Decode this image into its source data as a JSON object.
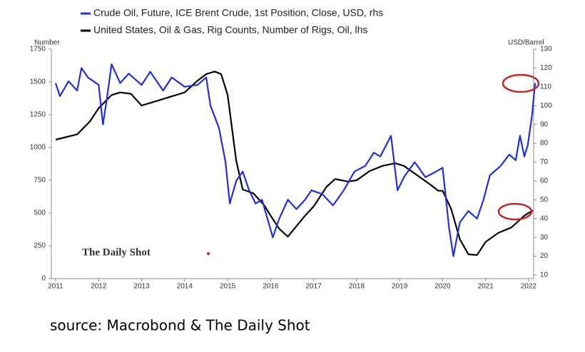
{
  "chart_data": {
    "type": "line",
    "source": "source: Macrobond & The Daily Shot",
    "watermark": "The Daily Shot",
    "ylabel": "Number",
    "y2label": "USD/Barrel",
    "xlim": [
      2011,
      2022.05
    ],
    "xticks": [
      2011,
      2012,
      2013,
      2014,
      2015,
      2016,
      2017,
      2018,
      2019,
      2020,
      2021,
      2022
    ],
    "ylim": [
      0,
      1750
    ],
    "yticks": [
      0,
      250,
      500,
      750,
      1000,
      1250,
      1500,
      1750
    ],
    "y2lim": [
      10,
      130
    ],
    "y2ticks": [
      10,
      20,
      30,
      40,
      50,
      60,
      70,
      80,
      90,
      100,
      110,
      120,
      130
    ],
    "series": [
      {
        "name": "Crude Oil, Future, ICE Brent Crude, 1st Position, Close, USD, rhs",
        "color": "#1f2fe0",
        "axis": "y2",
        "x": [
          2011.0,
          2011.1,
          2011.3,
          2011.5,
          2011.6,
          2011.75,
          2012.0,
          2012.1,
          2012.2,
          2012.3,
          2012.5,
          2012.7,
          2013.0,
          2013.2,
          2013.5,
          2013.7,
          2014.0,
          2014.3,
          2014.5,
          2014.6,
          2014.8,
          2014.95,
          2015.05,
          2015.2,
          2015.35,
          2015.5,
          2015.65,
          2015.8,
          2015.95,
          2016.05,
          2016.2,
          2016.4,
          2016.6,
          2016.8,
          2016.95,
          2017.2,
          2017.45,
          2017.7,
          2017.95,
          2018.2,
          2018.4,
          2018.55,
          2018.8,
          2018.95,
          2019.1,
          2019.35,
          2019.6,
          2019.85,
          2020.0,
          2020.15,
          2020.25,
          2020.4,
          2020.6,
          2020.8,
          2020.95,
          2021.1,
          2021.35,
          2021.55,
          2021.7,
          2021.8,
          2021.9,
          2021.98,
          2022.08,
          2022.15
        ],
        "values": [
          112,
          105,
          113,
          108,
          120,
          115,
          111,
          90,
          105,
          122,
          112,
          117,
          111,
          118,
          108,
          115,
          110,
          111,
          115,
          100,
          88,
          70,
          48,
          60,
          65,
          55,
          48,
          50,
          38,
          30,
          40,
          50,
          45,
          50,
          55,
          53,
          47,
          55,
          65,
          68,
          75,
          73,
          84,
          55,
          62,
          70,
          62,
          65,
          67,
          35,
          20,
          38,
          44,
          40,
          50,
          63,
          68,
          74,
          71,
          84,
          73,
          79,
          95,
          112
        ]
      },
      {
        "name": "United States, Oil & Gas, Rig Counts, Number of Rigs, Oil, lhs",
        "color": "#000000",
        "axis": "y",
        "x": [
          2011.0,
          2011.5,
          2011.8,
          2012.0,
          2012.3,
          2012.5,
          2012.75,
          2013.0,
          2013.4,
          2013.7,
          2014.0,
          2014.3,
          2014.5,
          2014.7,
          2014.85,
          2015.0,
          2015.2,
          2015.35,
          2015.6,
          2015.85,
          2016.0,
          2016.2,
          2016.4,
          2016.6,
          2016.8,
          2017.0,
          2017.3,
          2017.5,
          2017.8,
          2018.0,
          2018.3,
          2018.6,
          2018.9,
          2019.1,
          2019.4,
          2019.7,
          2019.9,
          2020.0,
          2020.2,
          2020.4,
          2020.6,
          2020.8,
          2021.0,
          2021.3,
          2021.6,
          2021.9,
          2022.1
        ],
        "values": [
          1060,
          1100,
          1200,
          1300,
          1400,
          1420,
          1410,
          1320,
          1360,
          1390,
          1420,
          1510,
          1560,
          1580,
          1560,
          1400,
          900,
          680,
          650,
          560,
          480,
          380,
          320,
          400,
          480,
          550,
          700,
          760,
          740,
          750,
          820,
          860,
          880,
          860,
          790,
          720,
          670,
          670,
          530,
          300,
          185,
          180,
          280,
          350,
          390,
          480,
          520
        ]
      }
    ]
  }
}
